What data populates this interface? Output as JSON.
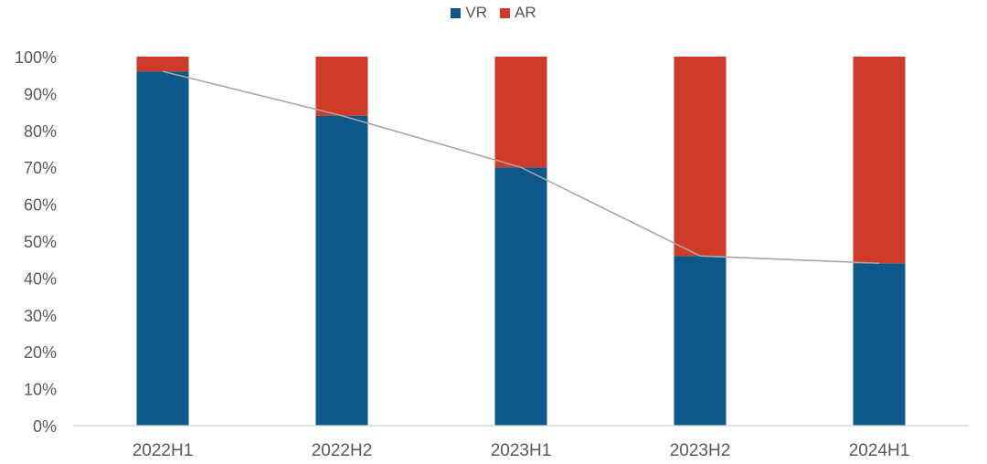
{
  "chart_data": {
    "type": "bar",
    "stacked": true,
    "categories": [
      "2022H1",
      "2022H2",
      "2023H1",
      "2023H2",
      "2024H1"
    ],
    "series": [
      {
        "name": "VR",
        "color": "#0e5789",
        "values": [
          96,
          84,
          70,
          46,
          44
        ]
      },
      {
        "name": "AR",
        "color": "#cf3a29",
        "values": [
          4,
          16,
          30,
          54,
          56
        ]
      }
    ],
    "overlay_line": {
      "series": "VR",
      "color": "#a6a6a6",
      "values": [
        96,
        84,
        70,
        46,
        44
      ]
    },
    "y_ticks": [
      "0%",
      "10%",
      "20%",
      "30%",
      "40%",
      "50%",
      "60%",
      "70%",
      "80%",
      "90%",
      "100%"
    ],
    "ylim": [
      0,
      100
    ],
    "grid": false,
    "legend_position": "top-center",
    "title": "",
    "xlabel": "",
    "ylabel": ""
  }
}
